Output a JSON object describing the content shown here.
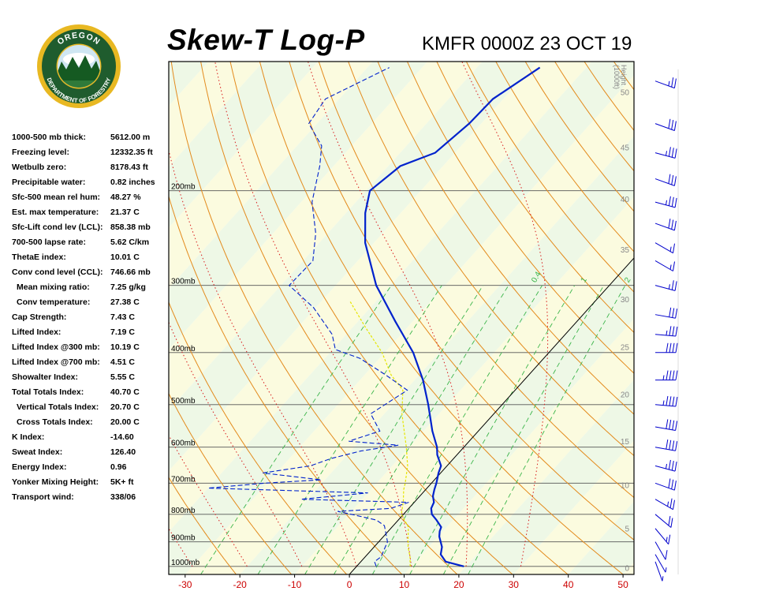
{
  "header": {
    "title": "Skew-T Log-P",
    "station": "KMFR 0000Z 23 OCT 19"
  },
  "logo": {
    "text": "OREGON DEPARTMENT OF FORESTRY",
    "colors": {
      "ring": "#1f5c2e",
      "gold": "#e8b822",
      "sky": "#cfe6f2",
      "trees": "#155a22"
    }
  },
  "stats": [
    {
      "label": "1000-500 mb thick:",
      "value": "5612.00 m",
      "indent": false
    },
    {
      "label": "Freezing level:",
      "value": "12332.35 ft",
      "indent": false
    },
    {
      "label": "Wetbulb zero:",
      "value": "8178.43 ft",
      "indent": false
    },
    {
      "label": "Precipitable water:",
      "value": "0.82 inches",
      "indent": false
    },
    {
      "label": "Sfc-500 mean rel hum:",
      "value": "48.27 %",
      "indent": false
    },
    {
      "label": "Est. max temperature:",
      "value": "21.37 C",
      "indent": false
    },
    {
      "label": "Sfc-Lift cond lev (LCL):",
      "value": "858.38 mb",
      "indent": false
    },
    {
      "label": "700-500 lapse rate:",
      "value": "5.62 C/km",
      "indent": false
    },
    {
      "label": "ThetaE index:",
      "value": "10.01 C",
      "indent": false
    },
    {
      "label": "Conv cond level (CCL):",
      "value": "746.66 mb",
      "indent": false
    },
    {
      "label": "Mean mixing ratio:",
      "value": "7.25 g/kg",
      "indent": true
    },
    {
      "label": "Conv temperature:",
      "value": "27.38 C",
      "indent": true
    },
    {
      "label": "Cap Strength:",
      "value": "7.43 C",
      "indent": false
    },
    {
      "label": "Lifted Index:",
      "value": "7.19 C",
      "indent": false
    },
    {
      "label": "Lifted Index @300 mb:",
      "value": "10.19 C",
      "indent": false
    },
    {
      "label": "Lifted Index @700 mb:",
      "value": "4.51 C",
      "indent": false
    },
    {
      "label": "Showalter Index:",
      "value": "5.55 C",
      "indent": false
    },
    {
      "label": "Total Totals Index:",
      "value": "40.70 C",
      "indent": false
    },
    {
      "label": "Vertical Totals Index:",
      "value": "20.70 C",
      "indent": true
    },
    {
      "label": "Cross Totals Index:",
      "value": "20.00 C",
      "indent": true
    },
    {
      "label": "K Index:",
      "value": "-14.60",
      "indent": false
    },
    {
      "label": "Sweat Index:",
      "value": "126.40",
      "indent": false
    },
    {
      "label": "Energy Index:",
      "value": "0.96",
      "indent": false
    },
    {
      "label": "Yonker Mixing Height:",
      "value": "5K+ ft",
      "indent": false
    },
    {
      "label": "Transport wind:",
      "value": "338/06",
      "indent": false
    }
  ],
  "chart_data": {
    "type": "line",
    "title": "Skew-T Log-P",
    "subtitle": "KMFR 0000Z 23 OCT 19",
    "x_axis": {
      "unit": "C",
      "ticks": [
        -30,
        -20,
        -10,
        0,
        10,
        20,
        30,
        40,
        50
      ],
      "range": [
        -33,
        52
      ]
    },
    "y_axis": {
      "scale": "log",
      "unit": "mb",
      "range": [
        1035,
        115
      ]
    },
    "pressure_levels": [
      {
        "p": 200,
        "label": "200mb"
      },
      {
        "p": 300,
        "label": "300mb"
      },
      {
        "p": 400,
        "label": "400mb"
      },
      {
        "p": 500,
        "label": "500mb"
      },
      {
        "p": 600,
        "label": "600mb"
      },
      {
        "p": 700,
        "label": "700mb"
      },
      {
        "p": 800,
        "label": "800mb"
      },
      {
        "p": 900,
        "label": "900mb"
      },
      {
        "p": 1000,
        "label": "1000mb"
      }
    ],
    "height_axis": {
      "title_lines": [
        "Height",
        "(1000ft)"
      ],
      "ticks": [
        {
          "p": 1005,
          "label": "0"
        },
        {
          "p": 850,
          "label": "5"
        },
        {
          "p": 705,
          "label": "10"
        },
        {
          "p": 585,
          "label": "15"
        },
        {
          "p": 478,
          "label": "20"
        },
        {
          "p": 390,
          "label": "25"
        },
        {
          "p": 318,
          "label": "30"
        },
        {
          "p": 257,
          "label": "35"
        },
        {
          "p": 207,
          "label": "40"
        },
        {
          "p": 166,
          "label": "45"
        },
        {
          "p": 131,
          "label": "50"
        }
      ]
    },
    "mixing_ratio_labels": [
      {
        "label": "0.4",
        "t": -13.5,
        "p": 300
      },
      {
        "label": "1",
        "t": -4.5,
        "p": 300
      },
      {
        "label": "2",
        "t": 3.5,
        "p": 300
      },
      {
        "label": "3",
        "t": 8.5,
        "p": 300
      },
      {
        "label": "5",
        "t": 14.5,
        "p": 300
      },
      {
        "label": "8",
        "t": 21.5,
        "p": 300
      }
    ],
    "isotherm_values": [
      -120,
      -110,
      -100,
      -90,
      -80,
      -70,
      -60,
      -50,
      -40,
      -30,
      -20,
      -10,
      0,
      10,
      20,
      30,
      40,
      50
    ],
    "dry_adiabat_thetas": [
      250,
      260,
      270,
      280,
      290,
      300,
      310,
      320,
      330,
      340,
      350,
      360,
      370,
      380,
      390,
      400,
      410,
      420,
      430,
      440,
      450,
      460,
      470
    ],
    "moist_adiabat_start_temps": [
      -30,
      -20,
      -10,
      0,
      10,
      20,
      30
    ],
    "mixing_ratios_gkg": [
      0.4,
      1,
      2,
      3,
      5,
      8,
      12,
      16
    ],
    "zero_isotherm_highlight": 0,
    "series": [
      {
        "role": "temperature",
        "color": "#0022cc",
        "style": "solid",
        "points": [
          {
            "p": 1000,
            "t": 19.6
          },
          {
            "p": 980,
            "t": 15.5
          },
          {
            "p": 950,
            "t": 13.4
          },
          {
            "p": 920,
            "t": 12.4
          },
          {
            "p": 880,
            "t": 10.2
          },
          {
            "p": 860,
            "t": 9.4
          },
          {
            "p": 845,
            "t": 9.0
          },
          {
            "p": 820,
            "t": 7.0
          },
          {
            "p": 800,
            "t": 5.2
          },
          {
            "p": 780,
            "t": 4.1
          },
          {
            "p": 760,
            "t": 3.6
          },
          {
            "p": 740,
            "t": 2.4
          },
          {
            "p": 720,
            "t": 1.6
          },
          {
            "p": 700,
            "t": 0.9
          },
          {
            "p": 670,
            "t": -0.4
          },
          {
            "p": 650,
            "t": -1.1
          },
          {
            "p": 620,
            "t": -3.6
          },
          {
            "p": 600,
            "t": -4.9
          },
          {
            "p": 560,
            "t": -8.4
          },
          {
            "p": 500,
            "t": -13.5
          },
          {
            "p": 450,
            "t": -18.5
          },
          {
            "p": 400,
            "t": -24.8
          },
          {
            "p": 350,
            "t": -33.2
          },
          {
            "p": 300,
            "t": -42.6
          },
          {
            "p": 250,
            "t": -51.6
          },
          {
            "p": 220,
            "t": -56.5
          },
          {
            "p": 200,
            "t": -59.3
          },
          {
            "p": 180,
            "t": -57.8
          },
          {
            "p": 170,
            "t": -53.6
          },
          {
            "p": 150,
            "t": -52.2
          },
          {
            "p": 135,
            "t": -51.9
          },
          {
            "p": 118,
            "t": -48.5
          }
        ]
      },
      {
        "role": "dewpoint",
        "color": "#0022cc",
        "style": "dashed",
        "points": [
          {
            "p": 1000,
            "t": 3.6
          },
          {
            "p": 980,
            "t": 2.5
          },
          {
            "p": 960,
            "t": 2.9
          },
          {
            "p": 900,
            "t": 1.6
          },
          {
            "p": 840,
            "t": -1.6
          },
          {
            "p": 820,
            "t": -4.0
          },
          {
            "p": 800,
            "t": -9.5
          },
          {
            "p": 790,
            "t": -12.5
          },
          {
            "p": 780,
            "t": -3.3
          },
          {
            "p": 760,
            "t": -1.0
          },
          {
            "p": 750,
            "t": -21.2
          },
          {
            "p": 730,
            "t": -10.0
          },
          {
            "p": 715,
            "t": -40.0
          },
          {
            "p": 700,
            "t": -30.4
          },
          {
            "p": 690,
            "t": -20.7
          },
          {
            "p": 670,
            "t": -32.5
          },
          {
            "p": 650,
            "t": -25.0
          },
          {
            "p": 630,
            "t": -22.4
          },
          {
            "p": 610,
            "t": -18.2
          },
          {
            "p": 595,
            "t": -12.3
          },
          {
            "p": 585,
            "t": -22.0
          },
          {
            "p": 560,
            "t": -18.0
          },
          {
            "p": 520,
            "t": -22.5
          },
          {
            "p": 470,
            "t": -19.7
          },
          {
            "p": 440,
            "t": -26.2
          },
          {
            "p": 410,
            "t": -33.6
          },
          {
            "p": 395,
            "t": -39.5
          },
          {
            "p": 370,
            "t": -42.6
          },
          {
            "p": 330,
            "t": -50.4
          },
          {
            "p": 300,
            "t": -58.5
          },
          {
            "p": 270,
            "t": -58.2
          },
          {
            "p": 240,
            "t": -62.2
          },
          {
            "p": 210,
            "t": -68.0
          },
          {
            "p": 180,
            "t": -72.5
          },
          {
            "p": 165,
            "t": -75.5
          },
          {
            "p": 150,
            "t": -81.5
          },
          {
            "p": 135,
            "t": -82.5
          },
          {
            "p": 118,
            "t": -76.0
          }
        ]
      },
      {
        "role": "wetbulb",
        "color": "#e6e600",
        "style": "dashed",
        "points": [
          {
            "p": 1000,
            "t": 9.8
          },
          {
            "p": 960,
            "t": 8.2
          },
          {
            "p": 920,
            "t": 6.2
          },
          {
            "p": 880,
            "t": 4.5
          },
          {
            "p": 845,
            "t": 3.0
          },
          {
            "p": 800,
            "t": -0.4
          },
          {
            "p": 760,
            "t": -2.0
          },
          {
            "p": 720,
            "t": -4.0
          },
          {
            "p": 700,
            "t": -4.8
          },
          {
            "p": 650,
            "t": -7.2
          },
          {
            "p": 600,
            "t": -10.5
          },
          {
            "p": 520,
            "t": -16.8
          },
          {
            "p": 470,
            "t": -20.5
          },
          {
            "p": 440,
            "t": -25.2
          },
          {
            "p": 400,
            "t": -30.5
          },
          {
            "p": 360,
            "t": -37.5
          },
          {
            "p": 320,
            "t": -45.0
          }
        ]
      }
    ],
    "wind_barbs": [
      {
        "p": 980,
        "dir": 340,
        "kt": 5
      },
      {
        "p": 950,
        "dir": 330,
        "kt": 5
      },
      {
        "p": 900,
        "dir": 330,
        "kt": 10
      },
      {
        "p": 850,
        "dir": 320,
        "kt": 15
      },
      {
        "p": 800,
        "dir": 310,
        "kt": 20
      },
      {
        "p": 750,
        "dir": 300,
        "kt": 25
      },
      {
        "p": 700,
        "dir": 290,
        "kt": 30
      },
      {
        "p": 650,
        "dir": 285,
        "kt": 35
      },
      {
        "p": 600,
        "dir": 280,
        "kt": 40
      },
      {
        "p": 550,
        "dir": 280,
        "kt": 40
      },
      {
        "p": 500,
        "dir": 275,
        "kt": 45
      },
      {
        "p": 450,
        "dir": 270,
        "kt": 45
      },
      {
        "p": 400,
        "dir": 270,
        "kt": 40
      },
      {
        "p": 370,
        "dir": 275,
        "kt": 35
      },
      {
        "p": 340,
        "dir": 280,
        "kt": 30
      },
      {
        "p": 300,
        "dir": 285,
        "kt": 25
      },
      {
        "p": 270,
        "dir": 300,
        "kt": 15
      },
      {
        "p": 250,
        "dir": 300,
        "kt": 15
      },
      {
        "p": 230,
        "dir": 290,
        "kt": 30
      },
      {
        "p": 210,
        "dir": 285,
        "kt": 35
      },
      {
        "p": 190,
        "dir": 290,
        "kt": 30
      },
      {
        "p": 170,
        "dir": 285,
        "kt": 35
      },
      {
        "p": 150,
        "dir": 290,
        "kt": 30
      },
      {
        "p": 125,
        "dir": 290,
        "kt": 25
      }
    ]
  }
}
